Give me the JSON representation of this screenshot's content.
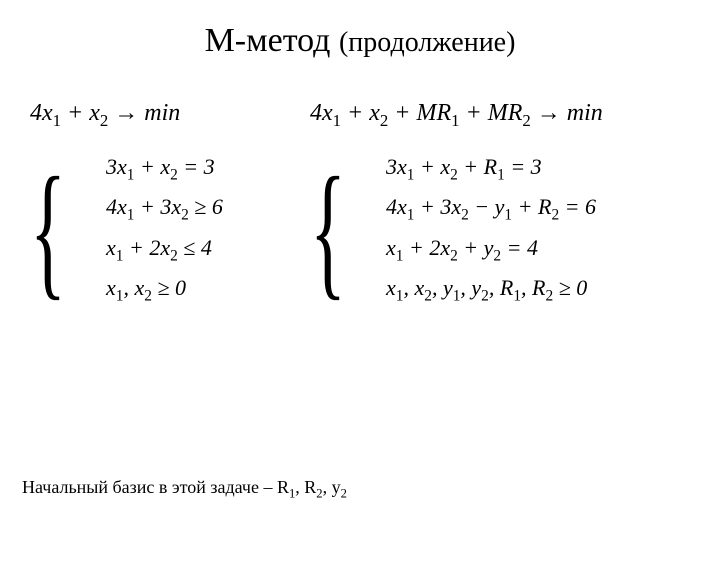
{
  "title": {
    "main": "М-метод",
    "sub": "(продолжение)"
  },
  "left": {
    "objective_html": "4<i>x</i><sub>1</sub> + <i>x</i><sub>2</sub> → min",
    "constraints_html": [
      "3<i>x</i><sub>1</sub> + <i>x</i><sub>2</sub> = 3",
      "4<i>x</i><sub>1</sub> + 3<i>x</i><sub>2</sub> ≥ 6",
      "<i>x</i><sub>1</sub> + 2<i>x</i><sub>2</sub> ≤ 4",
      "<i>x</i><sub>1</sub>, <i>x</i><sub>2</sub> ≥ 0"
    ]
  },
  "right": {
    "objective_html": "4<i>x</i><sub>1</sub> + <i>x</i><sub>2</sub> + <i>MR</i><sub>1</sub> + <i>MR</i><sub>2</sub> → min",
    "constraints_html": [
      "3<i>x</i><sub>1</sub> + <i>x</i><sub>2</sub> + <i>R</i><sub>1</sub> = 3",
      "4<i>x</i><sub>1</sub> + 3<i>x</i><sub>2</sub> − <i>y</i><sub>1</sub> + <i>R</i><sub>2</sub> = 6",
      "<i>x</i><sub>1</sub> + 2<i>x</i><sub>2</sub> + <i>y</i><sub>2</sub> = 4",
      "<i>x</i><sub>1</sub>, <i>x</i><sub>2</sub>, <i>y</i><sub>1</sub>, <i>y</i><sub>2</sub>, <i>R</i><sub>1</sub>, <i>R</i><sub>2</sub> ≥ 0"
    ]
  },
  "footer_html": "Начальный базис в этой задаче – R<sub>1</sub>, R<sub>2</sub>, y<sub>2</sub>",
  "style": {
    "background": "#ffffff",
    "text_color": "#000000",
    "title_fontsize": 34,
    "subtitle_fontsize": 28,
    "math_fontsize": 24,
    "constraint_fontsize": 22,
    "footer_fontsize": 18,
    "font_family": "Times New Roman"
  }
}
